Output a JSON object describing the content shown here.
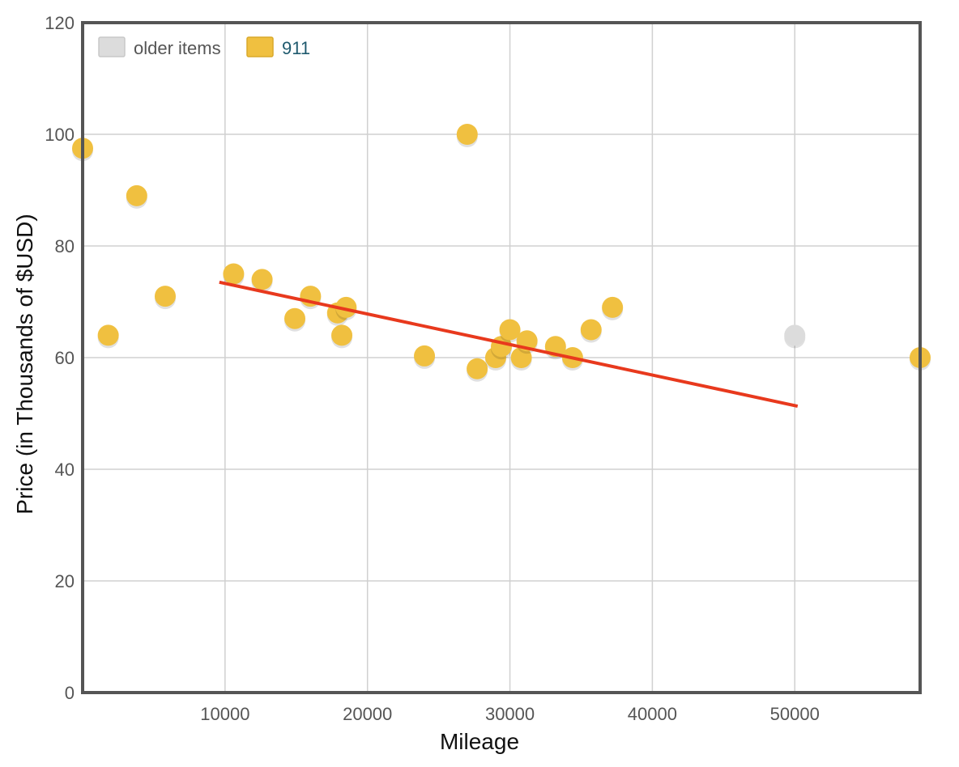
{
  "chart_data": {
    "type": "scatter",
    "xlabel": "Mileage",
    "ylabel": "Price (in Thousands of $USD)",
    "xlim": [
      0,
      58800
    ],
    "ylim": [
      0,
      120
    ],
    "x_ticks": [
      10000,
      20000,
      30000,
      40000,
      50000
    ],
    "y_ticks": [
      0,
      20,
      40,
      60,
      80,
      100,
      120
    ],
    "grid": true,
    "legend_position": "top-left",
    "legend": [
      {
        "label": "older items",
        "color": "#dcdcdc",
        "text_color": "#555555"
      },
      {
        "label": "911",
        "color": "#f0c040",
        "text_color": "#1f5a6e"
      }
    ],
    "series": [
      {
        "name": "older items",
        "color": "#dcdcdc",
        "points": [
          [
            50000,
            64
          ]
        ]
      },
      {
        "name": "911",
        "color": "#f0c040",
        "points": [
          [
            0,
            97.5
          ],
          [
            1800,
            64
          ],
          [
            3800,
            89
          ],
          [
            5800,
            71
          ],
          [
            10600,
            75
          ],
          [
            12600,
            74
          ],
          [
            14900,
            67
          ],
          [
            16000,
            71
          ],
          [
            17900,
            68
          ],
          [
            18200,
            64
          ],
          [
            18500,
            69
          ],
          [
            24000,
            60.3
          ],
          [
            27000,
            100
          ],
          [
            27700,
            58
          ],
          [
            29000,
            60
          ],
          [
            29400,
            62
          ],
          [
            30000,
            65
          ],
          [
            30800,
            60
          ],
          [
            31200,
            63
          ],
          [
            33200,
            62
          ],
          [
            34400,
            60
          ],
          [
            35700,
            65
          ],
          [
            37200,
            69
          ],
          [
            58800,
            60
          ]
        ]
      }
    ],
    "trendline": {
      "color": "#e8391d",
      "points": [
        [
          9600,
          73.5
        ],
        [
          50200,
          51.3
        ]
      ]
    }
  }
}
